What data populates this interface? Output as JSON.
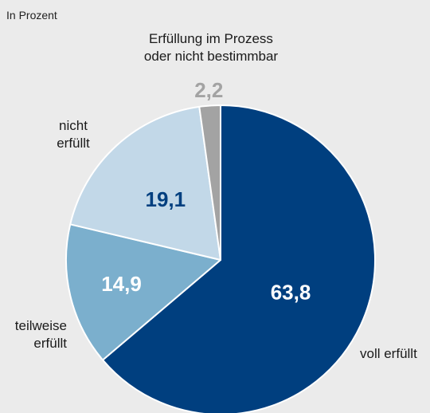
{
  "chart_data": {
    "type": "pie",
    "unit_label": "In Prozent",
    "start_angle_deg": 0,
    "direction": "clockwise",
    "slices": [
      {
        "label_lines": [
          "voll erfüllt"
        ],
        "value": 63.8,
        "value_text": "63,8",
        "color": "#003f7f",
        "value_color": "#ffffff"
      },
      {
        "label_lines": [
          "teilweise",
          "erfüllt"
        ],
        "value": 14.9,
        "value_text": "14,9",
        "color": "#7bafcd",
        "value_color": "#ffffff"
      },
      {
        "label_lines": [
          "nicht",
          "erfüllt"
        ],
        "value": 19.1,
        "value_text": "19,1",
        "color": "#c2d8e8",
        "value_color": "#003f7f"
      },
      {
        "label_lines": [
          "Erfüllung im Prozess",
          "oder nicht bestimmbar"
        ],
        "value": 2.2,
        "value_text": "2,2",
        "color": "#a3a3a3",
        "value_color": "#a3a3a3"
      }
    ]
  }
}
